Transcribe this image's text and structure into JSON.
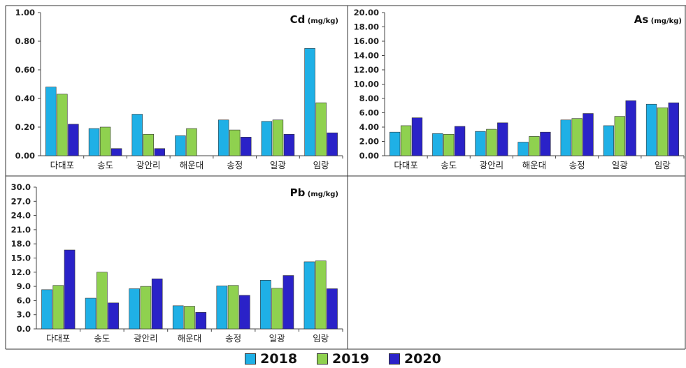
{
  "chart_data": [
    {
      "type": "bar",
      "title": "Cd",
      "unit": "(mg/kg)",
      "categories": [
        "다대포",
        "송도",
        "광안리",
        "해운대",
        "송정",
        "일광",
        "임랑"
      ],
      "ylim": [
        0,
        1.0
      ],
      "yticks": [
        "0.00",
        "0.20",
        "0.40",
        "0.60",
        "0.80",
        "1.00"
      ],
      "series": [
        {
          "name": "2018",
          "values": [
            0.48,
            0.19,
            0.29,
            0.14,
            0.25,
            0.24,
            0.75
          ]
        },
        {
          "name": "2019",
          "values": [
            0.43,
            0.2,
            0.15,
            0.19,
            0.18,
            0.25,
            0.37
          ]
        },
        {
          "name": "2020",
          "values": [
            0.22,
            0.05,
            0.05,
            0.0,
            0.13,
            0.15,
            0.16
          ]
        }
      ]
    },
    {
      "type": "bar",
      "title": "As",
      "unit": "(mg/kg)",
      "categories": [
        "다대포",
        "송도",
        "광안리",
        "해운대",
        "송정",
        "일광",
        "임랑"
      ],
      "ylim": [
        0,
        20.0
      ],
      "yticks": [
        "0.00",
        "2.00",
        "4.00",
        "6.00",
        "8.00",
        "10.00",
        "12.00",
        "14.00",
        "16.00",
        "18.00",
        "20.00"
      ],
      "series": [
        {
          "name": "2018",
          "values": [
            3.3,
            3.1,
            3.4,
            1.9,
            5.0,
            4.2,
            7.2
          ]
        },
        {
          "name": "2019",
          "values": [
            4.2,
            3.0,
            3.7,
            2.7,
            5.2,
            5.5,
            6.7
          ]
        },
        {
          "name": "2020",
          "values": [
            5.3,
            4.1,
            4.6,
            3.3,
            5.9,
            7.7,
            7.4
          ]
        }
      ]
    },
    {
      "type": "bar",
      "title": "Pb",
      "unit": "(mg/kg)",
      "categories": [
        "다대포",
        "송도",
        "광안리",
        "해운대",
        "송정",
        "일광",
        "임랑"
      ],
      "ylim": [
        0,
        30.0
      ],
      "yticks": [
        "0.0",
        "3.0",
        "6.0",
        "9.0",
        "12.0",
        "15.0",
        "18.0",
        "21.0",
        "24.0",
        "27.0",
        "30.0"
      ],
      "series": [
        {
          "name": "2018",
          "values": [
            8.3,
            6.5,
            8.5,
            4.9,
            9.1,
            10.3,
            14.2
          ]
        },
        {
          "name": "2019",
          "values": [
            9.2,
            12.0,
            9.0,
            4.8,
            9.2,
            8.6,
            14.4
          ]
        },
        {
          "name": "2020",
          "values": [
            16.7,
            5.5,
            10.6,
            3.5,
            7.1,
            11.3,
            8.5
          ]
        }
      ]
    }
  ],
  "legend": [
    {
      "label": "2018",
      "color": "#1fb0e6"
    },
    {
      "label": "2019",
      "color": "#8fd14f"
    },
    {
      "label": "2020",
      "color": "#2a22c8"
    }
  ]
}
